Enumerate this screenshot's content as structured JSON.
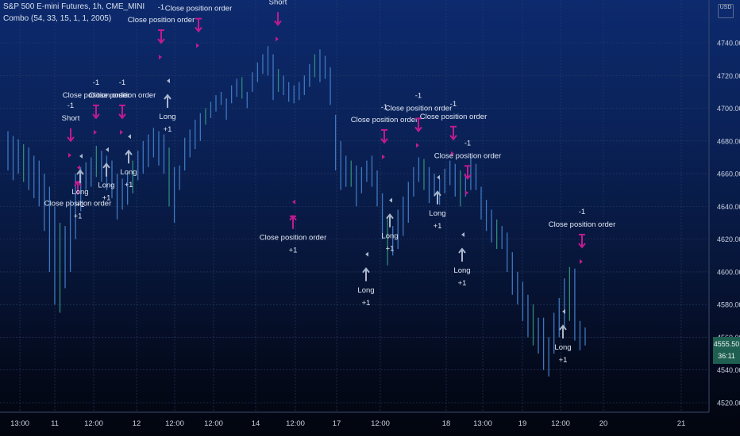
{
  "header": {
    "symbol_line": "S&P 500 E-mini Futures, 1h, CME_MINI",
    "strategy_line": "Combo (54, 33, 15, 1, 1, 2005)"
  },
  "currency_button": "USD",
  "last_price": {
    "price": "4555.50",
    "countdown": "36:11"
  },
  "colors": {
    "bar": "#3f77c0",
    "bar_up": "#2f8a7a",
    "grid": "#2a3f6a",
    "marker_entry": "#aab6cc",
    "marker_exit": "#c01b8f",
    "price_tag": "#1f5f52"
  },
  "chart_data": {
    "type": "candlestick",
    "yaxis": {
      "ylim": [
        4514,
        4752
      ],
      "ticks": [
        4520,
        4540,
        4560,
        4580,
        4600,
        4620,
        4640,
        4660,
        4680,
        4700,
        4720,
        4740
      ]
    },
    "xaxis": {
      "tick_labels": [
        "13:00",
        "11",
        "12:00",
        "12",
        "12:00",
        "12:00",
        "14",
        "12:00",
        "17",
        "12:00",
        "18",
        "13:00",
        "19",
        "12:00",
        "20",
        "21"
      ]
    },
    "grid": true,
    "ranges": [
      [
        4686,
        4662
      ],
      [
        4683,
        4656
      ],
      [
        4681,
        4660
      ],
      [
        4678,
        4655
      ],
      [
        4676,
        4650
      ],
      [
        4671,
        4645
      ],
      [
        4668,
        4640
      ],
      [
        4660,
        4625
      ],
      [
        4652,
        4600
      ],
      [
        4640,
        4580
      ],
      [
        4630,
        4575
      ],
      [
        4628,
        4590
      ],
      [
        4644,
        4600
      ],
      [
        4660,
        4620
      ],
      [
        4664,
        4637
      ],
      [
        4667,
        4650
      ],
      [
        4670,
        4652
      ],
      [
        4677,
        4658
      ],
      [
        4674,
        4655
      ],
      [
        4671,
        4650
      ],
      [
        4668,
        4645
      ],
      [
        4660,
        4632
      ],
      [
        4657,
        4638
      ],
      [
        4661,
        4641
      ],
      [
        4668,
        4648
      ],
      [
        4674,
        4656
      ],
      [
        4680,
        4660
      ],
      [
        4684,
        4664
      ],
      [
        4688,
        4670
      ],
      [
        4686,
        4665
      ],
      [
        4684,
        4660
      ],
      [
        4676,
        4640
      ],
      [
        4664,
        4630
      ],
      [
        4665,
        4650
      ],
      [
        4682,
        4662
      ],
      [
        4687,
        4670
      ],
      [
        4693,
        4675
      ],
      [
        4697,
        4680
      ],
      [
        4700,
        4690
      ],
      [
        4704,
        4694
      ],
      [
        4708,
        4698
      ],
      [
        4710,
        4702
      ],
      [
        4706,
        4693
      ],
      [
        4714,
        4703
      ],
      [
        4718,
        4707
      ],
      [
        4719,
        4706
      ],
      [
        4710,
        4700
      ],
      [
        4722,
        4710
      ],
      [
        4728,
        4716
      ],
      [
        4733,
        4721
      ],
      [
        4738,
        4720
      ],
      [
        4733,
        4705
      ],
      [
        4724,
        4710
      ],
      [
        4720,
        4708
      ],
      [
        4716,
        4704
      ],
      [
        4714,
        4703
      ],
      [
        4716,
        4705
      ],
      [
        4720,
        4708
      ],
      [
        4727,
        4713
      ],
      [
        4733,
        4719
      ],
      [
        4736,
        4716
      ],
      [
        4732,
        4718
      ],
      [
        4725,
        4702
      ],
      [
        4696,
        4662
      ],
      [
        4680,
        4650
      ],
      [
        4671,
        4652
      ],
      [
        4668,
        4652
      ],
      [
        4665,
        4640
      ],
      [
        4664,
        4648
      ],
      [
        4668,
        4655
      ],
      [
        4671,
        4652
      ],
      [
        4662,
        4640
      ],
      [
        4648,
        4620
      ],
      [
        4634,
        4604
      ],
      [
        4628,
        4610
      ],
      [
        4638,
        4614
      ],
      [
        4646,
        4622
      ],
      [
        4655,
        4630
      ],
      [
        4664,
        4646
      ],
      [
        4670,
        4655
      ],
      [
        4669,
        4650
      ],
      [
        4664,
        4642
      ],
      [
        4660,
        4646
      ],
      [
        4657,
        4641
      ],
      [
        4663,
        4648
      ],
      [
        4668,
        4653
      ],
      [
        4666,
        4646
      ],
      [
        4662,
        4640
      ],
      [
        4660,
        4646
      ],
      [
        4670,
        4650
      ],
      [
        4666,
        4650
      ],
      [
        4652,
        4632
      ],
      [
        4644,
        4625
      ],
      [
        4638,
        4618
      ],
      [
        4632,
        4614
      ],
      [
        4628,
        4614
      ],
      [
        4624,
        4600
      ],
      [
        4612,
        4586
      ],
      [
        4600,
        4580
      ],
      [
        4594,
        4570
      ],
      [
        4586,
        4560
      ],
      [
        4580,
        4555
      ],
      [
        4572,
        4550
      ],
      [
        4572,
        4540
      ],
      [
        4560,
        4536
      ],
      [
        4575,
        4550
      ],
      [
        4584,
        4560
      ],
      [
        4596,
        4566
      ],
      [
        4603,
        4570
      ],
      [
        4602,
        4558
      ],
      [
        4570,
        4552
      ],
      [
        4566,
        4555
      ]
    ],
    "signals": [
      {
        "kind": "short",
        "dir": "down",
        "label": "Short",
        "qty": "-1",
        "y": 4680
      },
      {
        "kind": "close",
        "dir": "down",
        "label": "Close position order",
        "qty": "-1",
        "y": 4694
      },
      {
        "kind": "close",
        "dir": "down",
        "label": "Close position order",
        "qty": "-1",
        "y": 4694
      },
      {
        "kind": "close",
        "dir": "up",
        "label": "Close position order",
        "qty": "+1",
        "y": 4655
      },
      {
        "kind": "long",
        "dir": "up",
        "label": "Long",
        "qty": "+1",
        "y": 4662
      },
      {
        "kind": "long",
        "dir": "up",
        "label": "Long",
        "qty": "+1",
        "y": 4666
      },
      {
        "kind": "long",
        "dir": "up",
        "label": "Long",
        "qty": "+1",
        "y": 4674
      },
      {
        "kind": "close",
        "dir": "down",
        "label": "Close position order",
        "qty": "-1",
        "y": 4740
      },
      {
        "kind": "long",
        "dir": "up",
        "label": "Long",
        "qty": "+1",
        "y": 4708
      },
      {
        "kind": "close",
        "dir": "down",
        "label": "Close position order",
        "qty": "-1",
        "y": 4747
      },
      {
        "kind": "short",
        "dir": "down",
        "label": "Short",
        "qty": "-1",
        "y": 4751
      },
      {
        "kind": "close",
        "dir": "up",
        "label": "Close position order",
        "qty": "+1",
        "y": 4634
      },
      {
        "kind": "long",
        "dir": "up",
        "label": "Long",
        "qty": "+1",
        "y": 4602
      },
      {
        "kind": "close",
        "dir": "down",
        "label": "Close position order",
        "qty": "-1",
        "y": 4679
      },
      {
        "kind": "long",
        "dir": "up",
        "label": "Long",
        "qty": "+1",
        "y": 4635
      },
      {
        "kind": "close",
        "dir": "down",
        "label": "Close position order",
        "qty": "-1",
        "y": 4686
      },
      {
        "kind": "long",
        "dir": "up",
        "label": "Long",
        "qty": "+1",
        "y": 4649
      },
      {
        "kind": "close",
        "dir": "down",
        "label": "Close position order",
        "qty": "-1",
        "y": 4681
      },
      {
        "kind": "close",
        "dir": "down",
        "label": "Close position order",
        "qty": "-1",
        "y": 4657
      },
      {
        "kind": "long",
        "dir": "up",
        "label": "Long",
        "qty": "+1",
        "y": 4614
      },
      {
        "kind": "close",
        "dir": "down",
        "label": "Close position order",
        "qty": "-1",
        "y": 4615
      },
      {
        "kind": "long",
        "dir": "up",
        "label": "Long",
        "qty": "+1",
        "y": 4567
      }
    ]
  }
}
